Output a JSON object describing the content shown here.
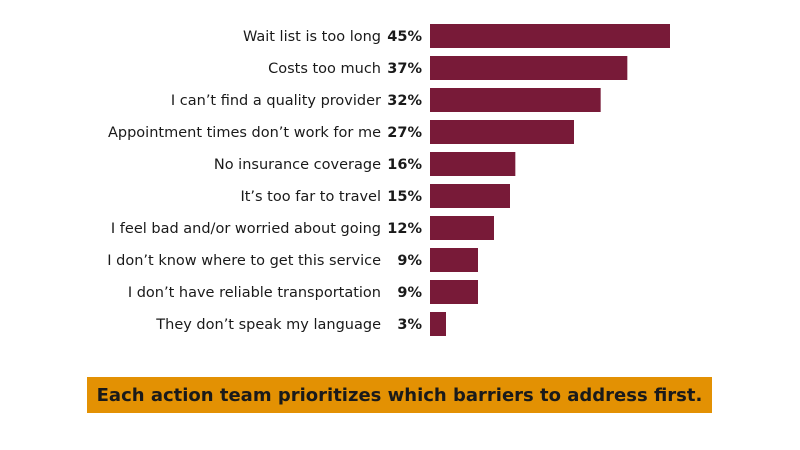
{
  "chart_data": {
    "type": "bar",
    "orientation": "horizontal",
    "categories": [
      "Wait list is too long",
      "Costs too much",
      "I can’t find a quality provider",
      "Appointment times don’t work for me",
      "No insurance coverage",
      "It’s too far to travel",
      "I feel bad and/or worried about going",
      "I don’t know where to get this service",
      "I don’t have reliable transportation",
      "They don’t speak my language"
    ],
    "values": [
      45,
      37,
      32,
      27,
      16,
      15,
      12,
      9,
      9,
      3
    ],
    "value_labels": [
      "45%",
      "37%",
      "32%",
      "27%",
      "16%",
      "15%",
      "12%",
      "9%",
      "9%",
      "3%"
    ],
    "unit": "%",
    "xlim": [
      0,
      45
    ],
    "grid": false,
    "legend": "none",
    "bar_color": "#781a38"
  },
  "banner": {
    "text": "Each action team prioritizes which barriers to address first.",
    "color": "#e39103"
  }
}
